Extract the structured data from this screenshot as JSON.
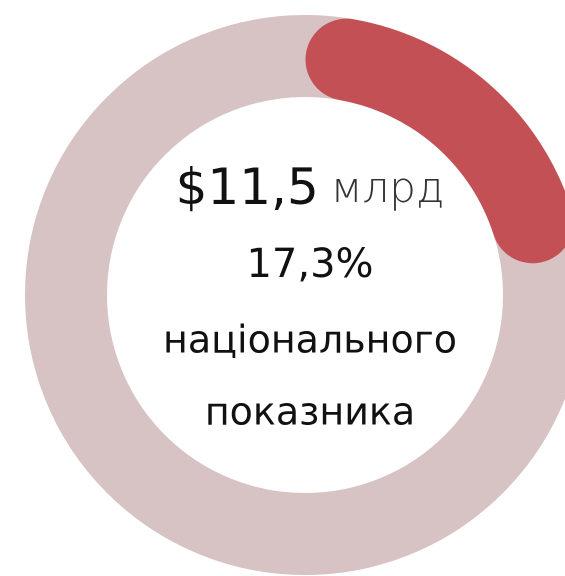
{
  "chart_data": {
    "type": "donut",
    "value": 17.3,
    "value_label": "17,3%",
    "amount": "$11,5",
    "unit": "млрд",
    "caption_line1": "національного",
    "caption_line2": "показника",
    "color": "#c25055",
    "track_color": "#d8c3c4"
  }
}
